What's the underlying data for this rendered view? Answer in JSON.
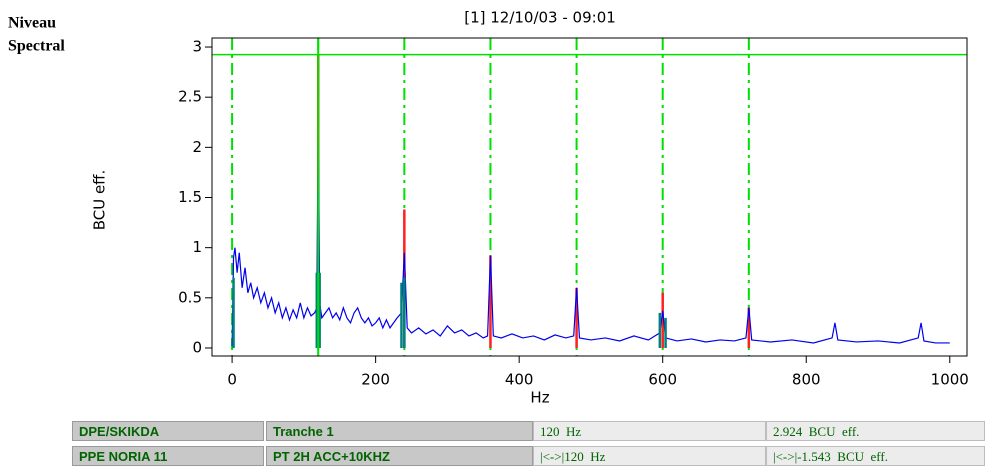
{
  "panel_label": [
    "Niveau",
    "Spectral"
  ],
  "chart_data": {
    "type": "line",
    "title": "[1] 12/10/03 - 09:01",
    "xlabel": "Hz",
    "ylabel": "BCU eff.",
    "xlim": [
      -28,
      1024
    ],
    "ylim": [
      -0.08,
      3.09
    ],
    "xticks": [
      0,
      200,
      400,
      600,
      800,
      1000
    ],
    "yticks": [
      0,
      0.5,
      1,
      1.5,
      2,
      2.5,
      3
    ],
    "harmonics": [
      0,
      120,
      240,
      360,
      480,
      600,
      720
    ],
    "harmonic_color": "#00e000",
    "cursor_x": 120,
    "cursor_y": 2.924,
    "cursor_color": "#00e000",
    "series": [
      {
        "color": "#ff2020",
        "style": "stem",
        "x": [
          120,
          240,
          360,
          480,
          600,
          720
        ],
        "values": [
          2.92,
          1.38,
          0.92,
          0.6,
          0.55,
          0.4
        ]
      },
      {
        "color": "#0000ee",
        "style": "line",
        "x": [
          0,
          2,
          4,
          7,
          10,
          14,
          18,
          22,
          26,
          30,
          35,
          40,
          45,
          50,
          55,
          60,
          65,
          70,
          75,
          80,
          85,
          90,
          95,
          100,
          105,
          110,
          115,
          118,
          120,
          122,
          125,
          130,
          135,
          140,
          145,
          150,
          155,
          160,
          165,
          170,
          175,
          180,
          185,
          190,
          195,
          200,
          205,
          210,
          215,
          220,
          225,
          230,
          236,
          240,
          244,
          250,
          260,
          270,
          280,
          290,
          300,
          310,
          320,
          330,
          340,
          350,
          356,
          360,
          364,
          375,
          390,
          405,
          420,
          435,
          450,
          465,
          476,
          480,
          484,
          500,
          520,
          540,
          560,
          580,
          596,
          600,
          604,
          620,
          640,
          660,
          680,
          700,
          716,
          720,
          724,
          750,
          780,
          810,
          836,
          840,
          844,
          870,
          900,
          930,
          956,
          960,
          964,
          980,
          1000
        ],
        "values": [
          0.02,
          0.9,
          1.0,
          0.75,
          0.95,
          0.6,
          0.8,
          0.55,
          0.65,
          0.5,
          0.6,
          0.45,
          0.55,
          0.4,
          0.5,
          0.35,
          0.45,
          0.3,
          0.4,
          0.28,
          0.38,
          0.3,
          0.45,
          0.3,
          0.4,
          0.32,
          0.35,
          0.4,
          2.26,
          0.45,
          0.3,
          0.35,
          0.4,
          0.3,
          0.35,
          0.28,
          0.4,
          0.3,
          0.25,
          0.35,
          0.4,
          0.3,
          0.25,
          0.3,
          0.22,
          0.25,
          0.3,
          0.2,
          0.28,
          0.2,
          0.25,
          0.3,
          0.35,
          0.95,
          0.2,
          0.15,
          0.2,
          0.14,
          0.18,
          0.12,
          0.22,
          0.15,
          0.18,
          0.12,
          0.15,
          0.1,
          0.12,
          0.92,
          0.12,
          0.1,
          0.14,
          0.1,
          0.12,
          0.08,
          0.13,
          0.1,
          0.12,
          0.6,
          0.1,
          0.08,
          0.1,
          0.07,
          0.12,
          0.08,
          0.15,
          0.37,
          0.1,
          0.07,
          0.09,
          0.06,
          0.08,
          0.07,
          0.1,
          0.4,
          0.08,
          0.06,
          0.08,
          0.05,
          0.1,
          0.25,
          0.08,
          0.06,
          0.07,
          0.05,
          0.1,
          0.25,
          0.07,
          0.05,
          0.05
        ]
      },
      {
        "color": "#008080",
        "style": "stem",
        "x": [
          2,
          118,
          122,
          236,
          240,
          596,
          604
        ],
        "values": [
          0.7,
          0.75,
          0.75,
          0.65,
          0.7,
          0.35,
          0.3
        ]
      }
    ]
  },
  "table": {
    "rows": [
      [
        "DPE/SKIKDA",
        "Tranche 1",
        "120  Hz",
        "2.924  BCU  eff."
      ],
      [
        "PPE NORIA 11",
        "PT 2H ACC+10KHZ",
        "|<->|120  Hz",
        "|<->|-1.543  BCU  eff."
      ]
    ]
  }
}
